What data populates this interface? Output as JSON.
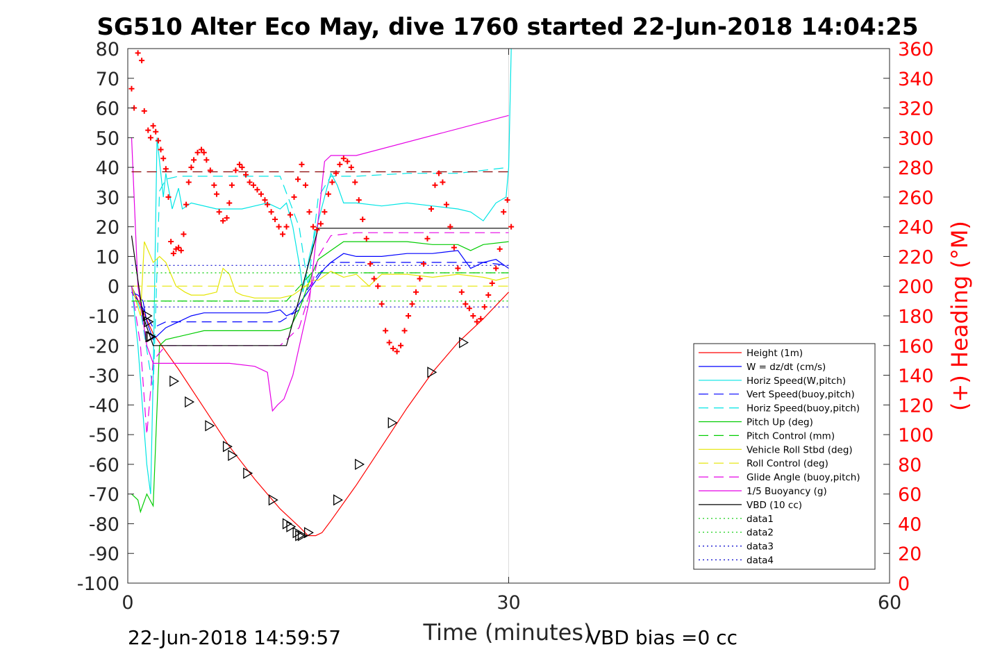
{
  "chart_data": {
    "type": "line",
    "title": "SG510 Alter Eco May, dive 1760 started 22-Jun-2018 14:04:25",
    "xlabel": "Time (minutes)",
    "ylabel_right": "(+) Heading (°M)",
    "footer_left": "22-Jun-2018 14:59:57",
    "footer_right": "VBD bias =0 cc",
    "xlim": [
      0,
      60
    ],
    "ylim_left": [
      -100,
      80
    ],
    "ylim_right": [
      0,
      360
    ],
    "x_ticks": [
      "0",
      "30",
      "60"
    ],
    "y_ticks_left": [
      "80",
      "70",
      "60",
      "50",
      "40",
      "30",
      "20",
      "10",
      "0",
      "-10",
      "-20",
      "-30",
      "-40",
      "-50",
      "-60",
      "-70",
      "-80",
      "-90",
      "-100"
    ],
    "y_ticks_right": [
      "360",
      "340",
      "320",
      "300",
      "280",
      "260",
      "240",
      "220",
      "200",
      "180",
      "160",
      "140",
      "120",
      "100",
      "80",
      "60",
      "40",
      "20",
      "0"
    ],
    "grid_x": [
      30
    ],
    "legend_placement": "lower-right",
    "colors": {
      "height": "#ff0000",
      "w": "#0000ff",
      "horiz": "#00e5e5",
      "pitch": "#00cc00",
      "roll": "#e5e500",
      "glide": "#e500e5",
      "vbd": "#000000",
      "data_green": "#00cc00",
      "data_blue": "#0000cc",
      "heading": "#ff0000",
      "heading_ref": "#8b0000"
    },
    "legend": [
      {
        "label": "Height (1m)",
        "key": "height",
        "dash": "solid"
      },
      {
        "label": "W = dz/dt (cm/s)",
        "key": "w",
        "dash": "solid"
      },
      {
        "label": "Horiz Speed(W,pitch)",
        "key": "horiz",
        "dash": "solid"
      },
      {
        "label": "Vert Speed(buoy,pitch)",
        "key": "w",
        "dash": "dashed"
      },
      {
        "label": "Horiz Speed(buoy,pitch)",
        "key": "horiz",
        "dash": "dashed"
      },
      {
        "label": "Pitch Up (deg)",
        "key": "pitch",
        "dash": "solid"
      },
      {
        "label": "Pitch Control (mm)",
        "key": "pitch",
        "dash": "dashed"
      },
      {
        "label": "Vehicle Roll Stbd (deg)",
        "key": "roll",
        "dash": "solid"
      },
      {
        "label": "Roll Control (deg)",
        "key": "roll",
        "dash": "dashed"
      },
      {
        "label": "Glide Angle (buoy,pitch)",
        "key": "glide",
        "dash": "dashed"
      },
      {
        "label": "1/5 Buoyancy (g)",
        "key": "glide",
        "dash": "solid"
      },
      {
        "label": "VBD (10 cc)",
        "key": "vbd",
        "dash": "solid"
      },
      {
        "label": "data1",
        "key": "data_green",
        "dash": "dotted"
      },
      {
        "label": "data2",
        "key": "data_green",
        "dash": "dotted"
      },
      {
        "label": "data3",
        "key": "data_blue",
        "dash": "dotted"
      },
      {
        "label": "data4",
        "key": "data_blue",
        "dash": "dotted"
      }
    ],
    "series": [
      {
        "name": "Height (1m)",
        "key": "height",
        "dash": "solid",
        "x": [
          0.3,
          2.0,
          4,
          6,
          8,
          10,
          12,
          13.5,
          14.2,
          14.8,
          15.3,
          16,
          18,
          20,
          22,
          24,
          26,
          28,
          30
        ],
        "y": [
          0,
          -16,
          -28,
          -41,
          -54,
          -65,
          -75,
          -81,
          -84,
          -84,
          -83,
          -79,
          -67,
          -54,
          -41,
          -29,
          -19,
          -11,
          -2
        ]
      },
      {
        "name": "W = dz/dt (cm/s)",
        "key": "w",
        "dash": "solid",
        "x": [
          0.3,
          0.8,
          1.2,
          1.5,
          2.0,
          2.5,
          3,
          4,
          5,
          6,
          8,
          10,
          11,
          12,
          12.5,
          13,
          13.5,
          14,
          14.5,
          15,
          15.5,
          16,
          17,
          18,
          20,
          22,
          24,
          26,
          27,
          28,
          29,
          30
        ],
        "y": [
          -2,
          -3,
          -5,
          -12,
          -18,
          -16,
          -14,
          -12,
          -10,
          -9,
          -9,
          -9,
          -9,
          -8,
          -10,
          -9,
          -6,
          -3,
          0,
          3,
          6,
          8,
          11,
          10,
          10,
          11,
          11,
          12,
          6,
          8,
          9,
          6
        ]
      },
      {
        "name": "Horiz Speed(W,pitch)",
        "key": "horiz",
        "dash": "solid",
        "x": [
          0.3,
          0.8,
          1.5,
          1.8,
          2.0,
          2.3,
          2.8,
          3,
          3.5,
          4,
          4.3,
          5,
          7,
          9,
          10,
          11,
          12,
          12.5,
          13,
          13.6,
          13.8,
          14,
          14.3,
          14.6,
          15,
          15.5,
          16,
          16.5,
          17,
          18,
          20,
          22,
          24,
          26,
          27,
          28,
          29,
          29.8,
          30,
          30.2
        ],
        "y": [
          0,
          -20,
          -60,
          -70,
          -30,
          50,
          30,
          38,
          26,
          33,
          26,
          28,
          26,
          26,
          27,
          28,
          26,
          28,
          20,
          5,
          -2,
          3,
          10,
          15,
          22,
          30,
          38,
          34,
          28,
          28,
          27,
          28,
          27,
          26,
          25,
          22,
          28,
          30,
          40,
          80
        ]
      },
      {
        "name": "Vert Speed(buoy,pitch)",
        "key": "w",
        "dash": "dashed",
        "x": [
          0.3,
          1.0,
          2.0,
          3,
          4,
          8,
          12,
          13.5,
          14,
          15,
          16,
          18,
          22,
          26,
          28,
          30
        ],
        "y": [
          -2,
          -6,
          -14,
          -12,
          -12,
          -12,
          -12,
          -8,
          -2,
          4,
          8,
          8,
          8,
          8,
          8,
          7
        ]
      },
      {
        "name": "Horiz Speed(buoy,pitch)",
        "key": "horiz",
        "dash": "dashed",
        "x": [
          0.3,
          1.0,
          2.0,
          2.5,
          3,
          4,
          8,
          12,
          13.5,
          14.2,
          15,
          16,
          18,
          22,
          26,
          28,
          30
        ],
        "y": [
          0,
          -8,
          -35,
          32,
          36,
          37,
          37,
          37,
          20,
          0,
          30,
          37,
          37,
          38,
          38,
          39,
          40
        ]
      },
      {
        "name": "Pitch Up (deg)",
        "key": "pitch",
        "dash": "solid",
        "x": [
          0.3,
          0.8,
          1.0,
          1.5,
          2.0,
          2.5,
          3,
          4,
          5,
          6,
          8,
          10,
          12,
          12.8,
          13.5,
          14,
          14.5,
          15,
          16,
          17,
          18,
          20,
          22,
          24,
          26,
          27,
          28,
          30
        ],
        "y": [
          -70,
          -72,
          -76,
          -70,
          -74,
          -20,
          -18,
          -17,
          -16,
          -15,
          -15,
          -15,
          -15,
          -14,
          -8,
          -2,
          4,
          9,
          12,
          15,
          15,
          15,
          15,
          14,
          14,
          12,
          14,
          15
        ]
      },
      {
        "name": "Pitch Control (mm)",
        "key": "pitch",
        "dash": "dashed",
        "x": [
          0.3,
          1.5,
          2.0,
          12.5,
          14.5,
          16,
          30
        ],
        "y": [
          -5,
          -5,
          -5,
          -5,
          4.5,
          4.5,
          4.5
        ]
      },
      {
        "name": "Vehicle Roll Stbd (deg)",
        "key": "roll",
        "dash": "solid",
        "x": [
          0.3,
          1.0,
          1.3,
          1.6,
          2.0,
          2.5,
          3,
          3.8,
          4.5,
          5,
          6,
          7,
          7.5,
          8,
          8.5,
          9,
          10,
          11,
          12,
          13,
          14,
          14.5,
          15,
          16,
          17,
          18,
          19,
          20,
          22,
          24,
          26,
          28,
          29,
          30
        ],
        "y": [
          0,
          -10,
          15,
          12,
          8,
          10,
          8,
          0,
          -2,
          -3,
          -3,
          -2,
          6,
          4,
          -2,
          -3,
          -4,
          -4,
          -4,
          -3,
          0,
          2,
          2,
          5,
          3,
          4,
          0,
          4,
          4,
          3,
          4,
          3,
          2,
          3
        ]
      },
      {
        "name": "Roll Control (deg)",
        "key": "roll",
        "dash": "dashed",
        "x": [
          0.3,
          1.5,
          30
        ],
        "y": [
          0,
          0,
          0
        ]
      },
      {
        "name": "Glide Angle (buoy,pitch)",
        "key": "glide",
        "dash": "dashed",
        "x": [
          0.3,
          1.0,
          1.5,
          2.0,
          3,
          8,
          12,
          13.5,
          14.5,
          15,
          16,
          18,
          22,
          26,
          30
        ],
        "y": [
          0,
          -20,
          -50,
          -25,
          -20,
          -20,
          -20,
          -14,
          0,
          10,
          17,
          18,
          18,
          18,
          18
        ]
      },
      {
        "name": "1/5 Buoyancy (g)",
        "key": "glide",
        "dash": "solid",
        "x": [
          0.3,
          0.8,
          1.5,
          2.0,
          3,
          8,
          10,
          11,
          11.4,
          11.8,
          12.3,
          13,
          14.3,
          15.5,
          16,
          18,
          30
        ],
        "y": [
          50,
          0,
          -20,
          -26,
          -26,
          -26,
          -27,
          -29,
          -42,
          -40,
          -38,
          -30,
          -5,
          42,
          44,
          44,
          57.5
        ]
      },
      {
        "name": "VBD (10 cc)",
        "key": "vbd",
        "dash": "solid",
        "x": [
          0.3,
          1.2,
          2.0,
          12.5,
          15,
          30
        ],
        "y": [
          17,
          -10,
          -20,
          -20,
          19.5,
          19.5
        ]
      },
      {
        "name": "data1",
        "key": "data_green",
        "dash": "dotted",
        "x": [
          0.3,
          30
        ],
        "y": [
          4.5,
          4.5
        ]
      },
      {
        "name": "data2",
        "key": "data_green",
        "dash": "dotted",
        "x": [
          0.3,
          30
        ],
        "y": [
          -5,
          -5
        ]
      },
      {
        "name": "data3",
        "key": "data_blue",
        "dash": "dotted",
        "x": [
          0.3,
          30
        ],
        "y": [
          7,
          7
        ]
      },
      {
        "name": "data4",
        "key": "data_blue",
        "dash": "dotted",
        "x": [
          0.3,
          30
        ],
        "y": [
          -7,
          -7
        ]
      }
    ],
    "heading_reference": {
      "y_right": 277,
      "x": [
        0.3,
        30
      ]
    },
    "heading_points": {
      "x": [
        0.3,
        0.5,
        0.8,
        1.1,
        1.3,
        1.6,
        1.8,
        2.0,
        2.2,
        2.4,
        2.6,
        2.8,
        3.0,
        3.2,
        3.4,
        3.6,
        3.8,
        4.0,
        4.2,
        4.4,
        4.6,
        4.8,
        5.0,
        5.2,
        5.5,
        5.8,
        6.0,
        6.2,
        6.5,
        6.8,
        7.0,
        7.2,
        7.5,
        7.8,
        8.0,
        8.2,
        8.5,
        8.8,
        9.0,
        9.3,
        9.6,
        9.9,
        10.2,
        10.5,
        10.8,
        11.0,
        11.3,
        11.6,
        11.9,
        12.2,
        12.5,
        12.8,
        13.1,
        13.4,
        13.7,
        14.0,
        14.3,
        14.6,
        14.9,
        15.2,
        15.5,
        15.8,
        16.1,
        16.4,
        16.7,
        17.0,
        17.3,
        17.6,
        17.9,
        18.2,
        18.5,
        18.8,
        19.1,
        19.4,
        19.7,
        20.0,
        20.3,
        20.6,
        20.9,
        21.2,
        21.5,
        21.8,
        22.1,
        22.4,
        22.7,
        23.0,
        23.3,
        23.6,
        23.9,
        24.2,
        24.5,
        24.8,
        25.1,
        25.4,
        25.7,
        26.0,
        26.3,
        26.6,
        26.9,
        27.2,
        27.5,
        27.8,
        28.1,
        28.4,
        28.7,
        29.0,
        29.3,
        29.6,
        29.9,
        30.2
      ],
      "y": [
        333,
        320,
        357,
        352,
        318,
        305,
        300,
        308,
        304,
        298,
        292,
        286,
        279,
        260,
        230,
        222,
        225,
        226,
        224,
        235,
        255,
        270,
        280,
        285,
        290,
        292,
        290,
        285,
        278,
        268,
        262,
        250,
        244,
        246,
        256,
        268,
        278,
        282,
        280,
        275,
        270,
        268,
        265,
        262,
        258,
        255,
        250,
        245,
        240,
        235,
        240,
        248,
        260,
        272,
        282,
        268,
        250,
        240,
        238,
        242,
        250,
        262,
        270,
        276,
        282,
        286,
        284,
        280,
        270,
        258,
        245,
        232,
        215,
        205,
        200,
        188,
        170,
        162,
        158,
        156,
        160,
        170,
        180,
        188,
        196,
        205,
        215,
        232,
        252,
        268,
        276,
        270,
        255,
        240,
        226,
        212,
        196,
        188,
        185,
        180,
        176,
        178,
        186,
        194,
        202,
        212,
        225,
        250,
        258,
        240
      ]
    },
    "markers": {
      "x": [
        1.5,
        1.6,
        1.7,
        1.8,
        3.6,
        4.8,
        6.4,
        7.8,
        8.2,
        9.4,
        11.4,
        12.5,
        12.8,
        13.3,
        13.5,
        13.7,
        14.2,
        16.5,
        18.2,
        20.8,
        23.9,
        26.4
      ],
      "y": [
        -10,
        -12,
        -17,
        -17,
        -32,
        -39,
        -47,
        -54,
        -57,
        -63,
        -72,
        -80,
        -81,
        -83,
        -84,
        -84,
        -83,
        -72,
        -60,
        -46,
        -29,
        -19
      ]
    }
  }
}
